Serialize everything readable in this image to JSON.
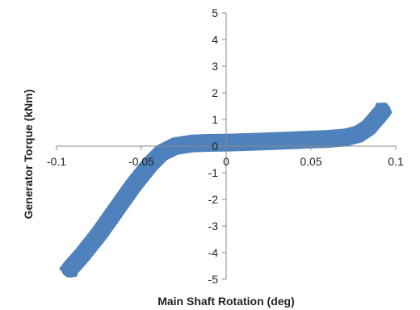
{
  "chart_data": {
    "type": "scatter",
    "title": "",
    "xlabel": "Main Shaft Rotation (deg)",
    "ylabel": "Generator Torque (kNm)",
    "xlim": [
      -0.1,
      0.1
    ],
    "ylim": [
      -5,
      5
    ],
    "x_ticks": [
      -0.1,
      -0.05,
      0,
      0.05,
      0.1
    ],
    "x_tick_labels": [
      "-0.1",
      "-0.05",
      "0",
      "0.05",
      "0.1"
    ],
    "y_ticks": [
      -5,
      -4,
      -3,
      -2,
      -1,
      0,
      1,
      2,
      3,
      4,
      5
    ],
    "y_tick_labels": [
      "-5",
      "-4",
      "-3",
      "-2",
      "-1",
      "0",
      "1",
      "2",
      "3",
      "4",
      "5"
    ],
    "grid": false,
    "legend": "none",
    "series": [
      {
        "color": "#4f81bd",
        "band_halfwidth_deg": 0.006,
        "points": [
          {
            "x": -0.092,
            "y": -4.6
          },
          {
            "x": -0.085,
            "y": -4.1
          },
          {
            "x": -0.075,
            "y": -3.3
          },
          {
            "x": -0.065,
            "y": -2.4
          },
          {
            "x": -0.055,
            "y": -1.5
          },
          {
            "x": -0.045,
            "y": -0.7
          },
          {
            "x": -0.038,
            "y": -0.25
          },
          {
            "x": -0.03,
            "y": 0.0
          },
          {
            "x": -0.02,
            "y": 0.1
          },
          {
            "x": -0.01,
            "y": 0.12
          },
          {
            "x": 0.0,
            "y": 0.13
          },
          {
            "x": 0.02,
            "y": 0.17
          },
          {
            "x": 0.04,
            "y": 0.22
          },
          {
            "x": 0.06,
            "y": 0.27
          },
          {
            "x": 0.07,
            "y": 0.32
          },
          {
            "x": 0.078,
            "y": 0.45
          },
          {
            "x": 0.084,
            "y": 0.7
          },
          {
            "x": 0.088,
            "y": 1.0
          },
          {
            "x": 0.092,
            "y": 1.3
          }
        ]
      }
    ]
  }
}
